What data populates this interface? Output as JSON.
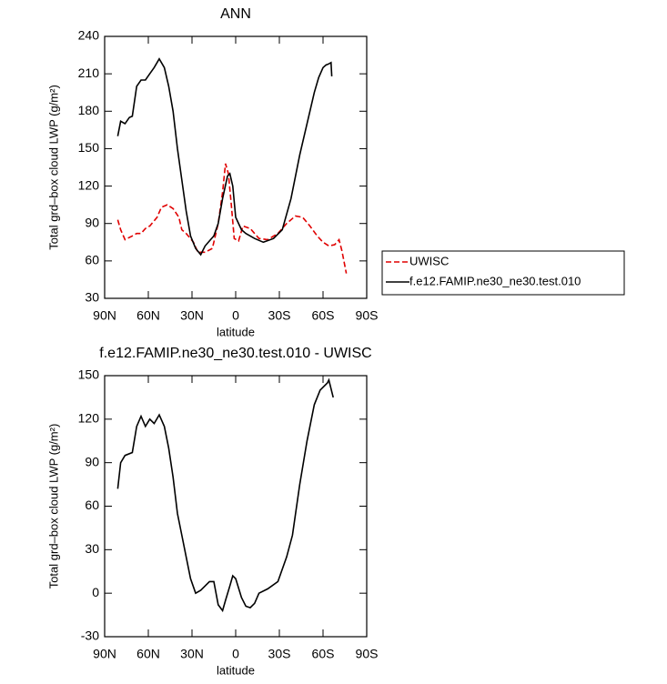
{
  "chart_data": [
    {
      "type": "line",
      "title": "ANN",
      "xlabel": "latitude",
      "ylabel": "Total grd–box cloud LWP (g/m²)",
      "xlim": [
        90,
        -90
      ],
      "xticks": [
        {
          "value": 90,
          "label": "90N"
        },
        {
          "value": 60,
          "label": "60N"
        },
        {
          "value": 30,
          "label": "30N"
        },
        0,
        {
          "value": -30,
          "label": "30S"
        },
        {
          "value": -60,
          "label": "60S"
        },
        {
          "value": -90,
          "label": "90S"
        }
      ],
      "ylim": [
        30,
        240
      ],
      "yticks": [
        30,
        60,
        90,
        120,
        150,
        180,
        210,
        240
      ],
      "series": [
        {
          "name": "UWISC",
          "color": "#e00000",
          "dash": true,
          "x": [
            81,
            79,
            76,
            71,
            68,
            65,
            62,
            59,
            54,
            51,
            47,
            43,
            39,
            37,
            34,
            29,
            26,
            21,
            16,
            12,
            9,
            7,
            5,
            3,
            1,
            -2,
            -5,
            -10,
            -16,
            -22,
            -29,
            -35,
            -41,
            -46,
            -51,
            -56,
            -60,
            -64,
            -68,
            -71,
            -73,
            -76
          ],
          "values": [
            93,
            85,
            77,
            80,
            82,
            82,
            86,
            88,
            95,
            103,
            105,
            102,
            95,
            85,
            82,
            75,
            67,
            67,
            70,
            90,
            115,
            138,
            130,
            105,
            78,
            76,
            88,
            86,
            78,
            77,
            82,
            90,
            96,
            95,
            88,
            80,
            75,
            72,
            73,
            77,
            68,
            50
          ]
        },
        {
          "name": "f.e12.FAMIP.ne30_ne30.test.010",
          "color": "#000000",
          "dash": false,
          "x": [
            81,
            79,
            76,
            73,
            71,
            68,
            65,
            62,
            59,
            56,
            52.5,
            49,
            46,
            43,
            40,
            37,
            34,
            31,
            27.5,
            24,
            21,
            18,
            15,
            12,
            9,
            5.6,
            4,
            2,
            0,
            -4,
            -7,
            -13,
            -19,
            -26,
            -32,
            -38,
            -44,
            -51,
            -54,
            -57,
            -60,
            -62,
            -64,
            -65.5,
            -66
          ],
          "values": [
            160,
            172,
            170,
            175,
            176,
            200,
            205,
            205,
            210,
            215,
            222,
            215,
            200,
            180,
            150,
            125,
            100,
            80,
            70,
            65,
            72,
            76,
            80,
            90,
            110,
            128,
            130,
            120,
            95,
            85,
            82,
            78,
            75,
            78,
            85,
            110,
            145,
            180,
            195,
            207,
            215,
            217,
            218,
            219,
            208
          ]
        }
      ]
    },
    {
      "type": "line",
      "title": "f.e12.FAMIP.ne30_ne30.test.010 - UWISC",
      "xlabel": "latitude",
      "ylabel": "Total grd–box cloud LWP (g/m²)",
      "xlim": [
        90,
        -90
      ],
      "xticks": [
        {
          "value": 90,
          "label": "90N"
        },
        {
          "value": 60,
          "label": "60N"
        },
        {
          "value": 30,
          "label": "30N"
        },
        0,
        {
          "value": -30,
          "label": "30S"
        },
        {
          "value": -60,
          "label": "60S"
        },
        {
          "value": -90,
          "label": "90S"
        }
      ],
      "ylim": [
        -30,
        150
      ],
      "yticks": [
        -30,
        0,
        30,
        60,
        90,
        120,
        150
      ],
      "series": [
        {
          "color": "#000000",
          "dash": false,
          "x": [
            81,
            79,
            76,
            71,
            68,
            65,
            62,
            59,
            56,
            52.5,
            49,
            46,
            43,
            40,
            37,
            34,
            31,
            27.5,
            24,
            21,
            18,
            15,
            12,
            9,
            7,
            4,
            2,
            0,
            -4,
            -7,
            -10,
            -13,
            -16,
            -22,
            -29,
            -35,
            -39,
            -44,
            -49,
            -54,
            -58,
            -63,
            -64,
            -67
          ],
          "values": [
            72,
            90,
            95,
            97,
            115,
            122,
            115,
            120,
            117,
            123,
            115,
            100,
            80,
            55,
            40,
            25,
            10,
            0,
            2,
            5,
            8,
            8,
            -8,
            -12,
            -5,
            5,
            12,
            10,
            -3,
            -9,
            -10,
            -7,
            0,
            3,
            8,
            25,
            40,
            75,
            105,
            130,
            140,
            145,
            147,
            135
          ]
        }
      ]
    }
  ]
}
